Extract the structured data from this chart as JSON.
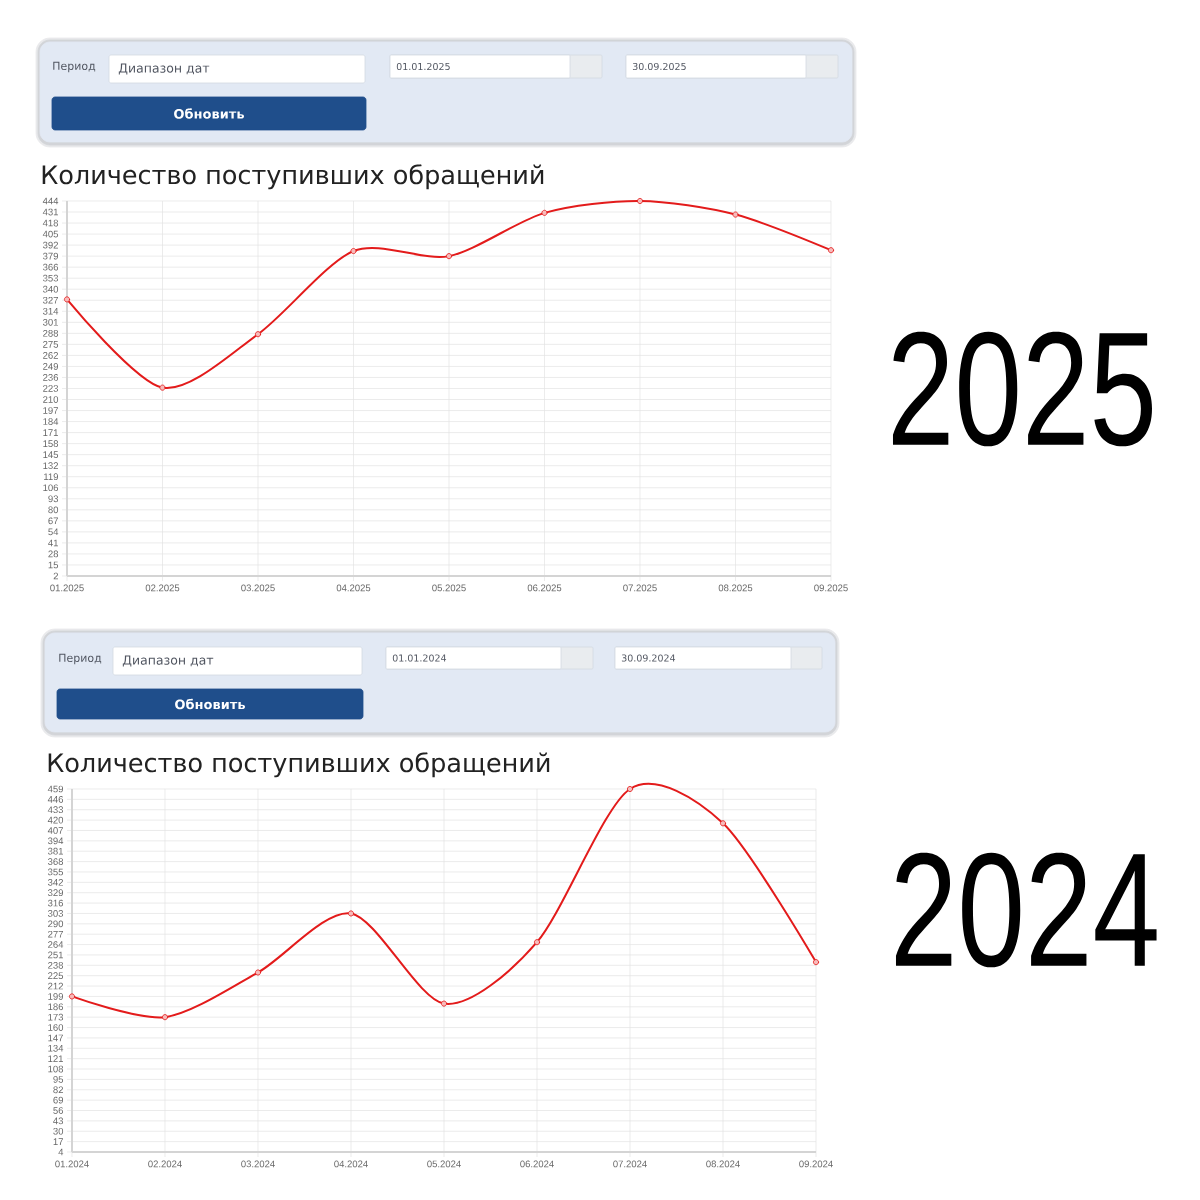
{
  "chart_data": [
    {
      "type": "line",
      "title": "Количество поступивших обращений",
      "annotations": [
        "Период",
        "Диапазон дат",
        "01.01.2025",
        "30.09.2025",
        "Обновить",
        "2025"
      ],
      "categories": [
        "01.2025",
        "02.2025",
        "03.2025",
        "04.2025",
        "05.2025",
        "06.2025",
        "07.2025",
        "08.2025",
        "09.2025"
      ],
      "values": [
        328,
        224,
        287,
        385,
        379,
        430,
        444,
        428,
        386
      ],
      "color": "#e31b1b",
      "ylim": [
        2,
        444
      ],
      "yticks": [
        2,
        15,
        28,
        41,
        54,
        67,
        80,
        93,
        106,
        119,
        132,
        145,
        158,
        171,
        184,
        197,
        210,
        223,
        236,
        249,
        262,
        275,
        288,
        301,
        314,
        327,
        340,
        353,
        366,
        379,
        392,
        405,
        418,
        431,
        444
      ],
      "grid": true,
      "marker": "circle",
      "line_style": "solid"
    },
    {
      "type": "line",
      "title": "Количество поступивших обращений",
      "annotations": [
        "Период",
        "Диапазон дат",
        "01.01.2024",
        "30.09.2024",
        "Обновить",
        "2024"
      ],
      "categories": [
        "01.2024",
        "02.2024",
        "03.2024",
        "04.2024",
        "05.2024",
        "06.2024",
        "07.2024",
        "08.2024",
        "09.2024"
      ],
      "values": [
        199,
        173,
        229,
        303,
        190,
        267,
        459,
        416,
        242
      ],
      "color": "#e31b1b",
      "ylim": [
        4,
        459
      ],
      "yticks": [
        4,
        17,
        30,
        43,
        56,
        69,
        82,
        95,
        108,
        121,
        134,
        147,
        160,
        173,
        186,
        199,
        212,
        225,
        238,
        251,
        264,
        277,
        290,
        303,
        316,
        329,
        342,
        355,
        368,
        381,
        394,
        407,
        420,
        433,
        446,
        459
      ],
      "grid": true,
      "marker": "circle",
      "line_style": "solid"
    }
  ]
}
